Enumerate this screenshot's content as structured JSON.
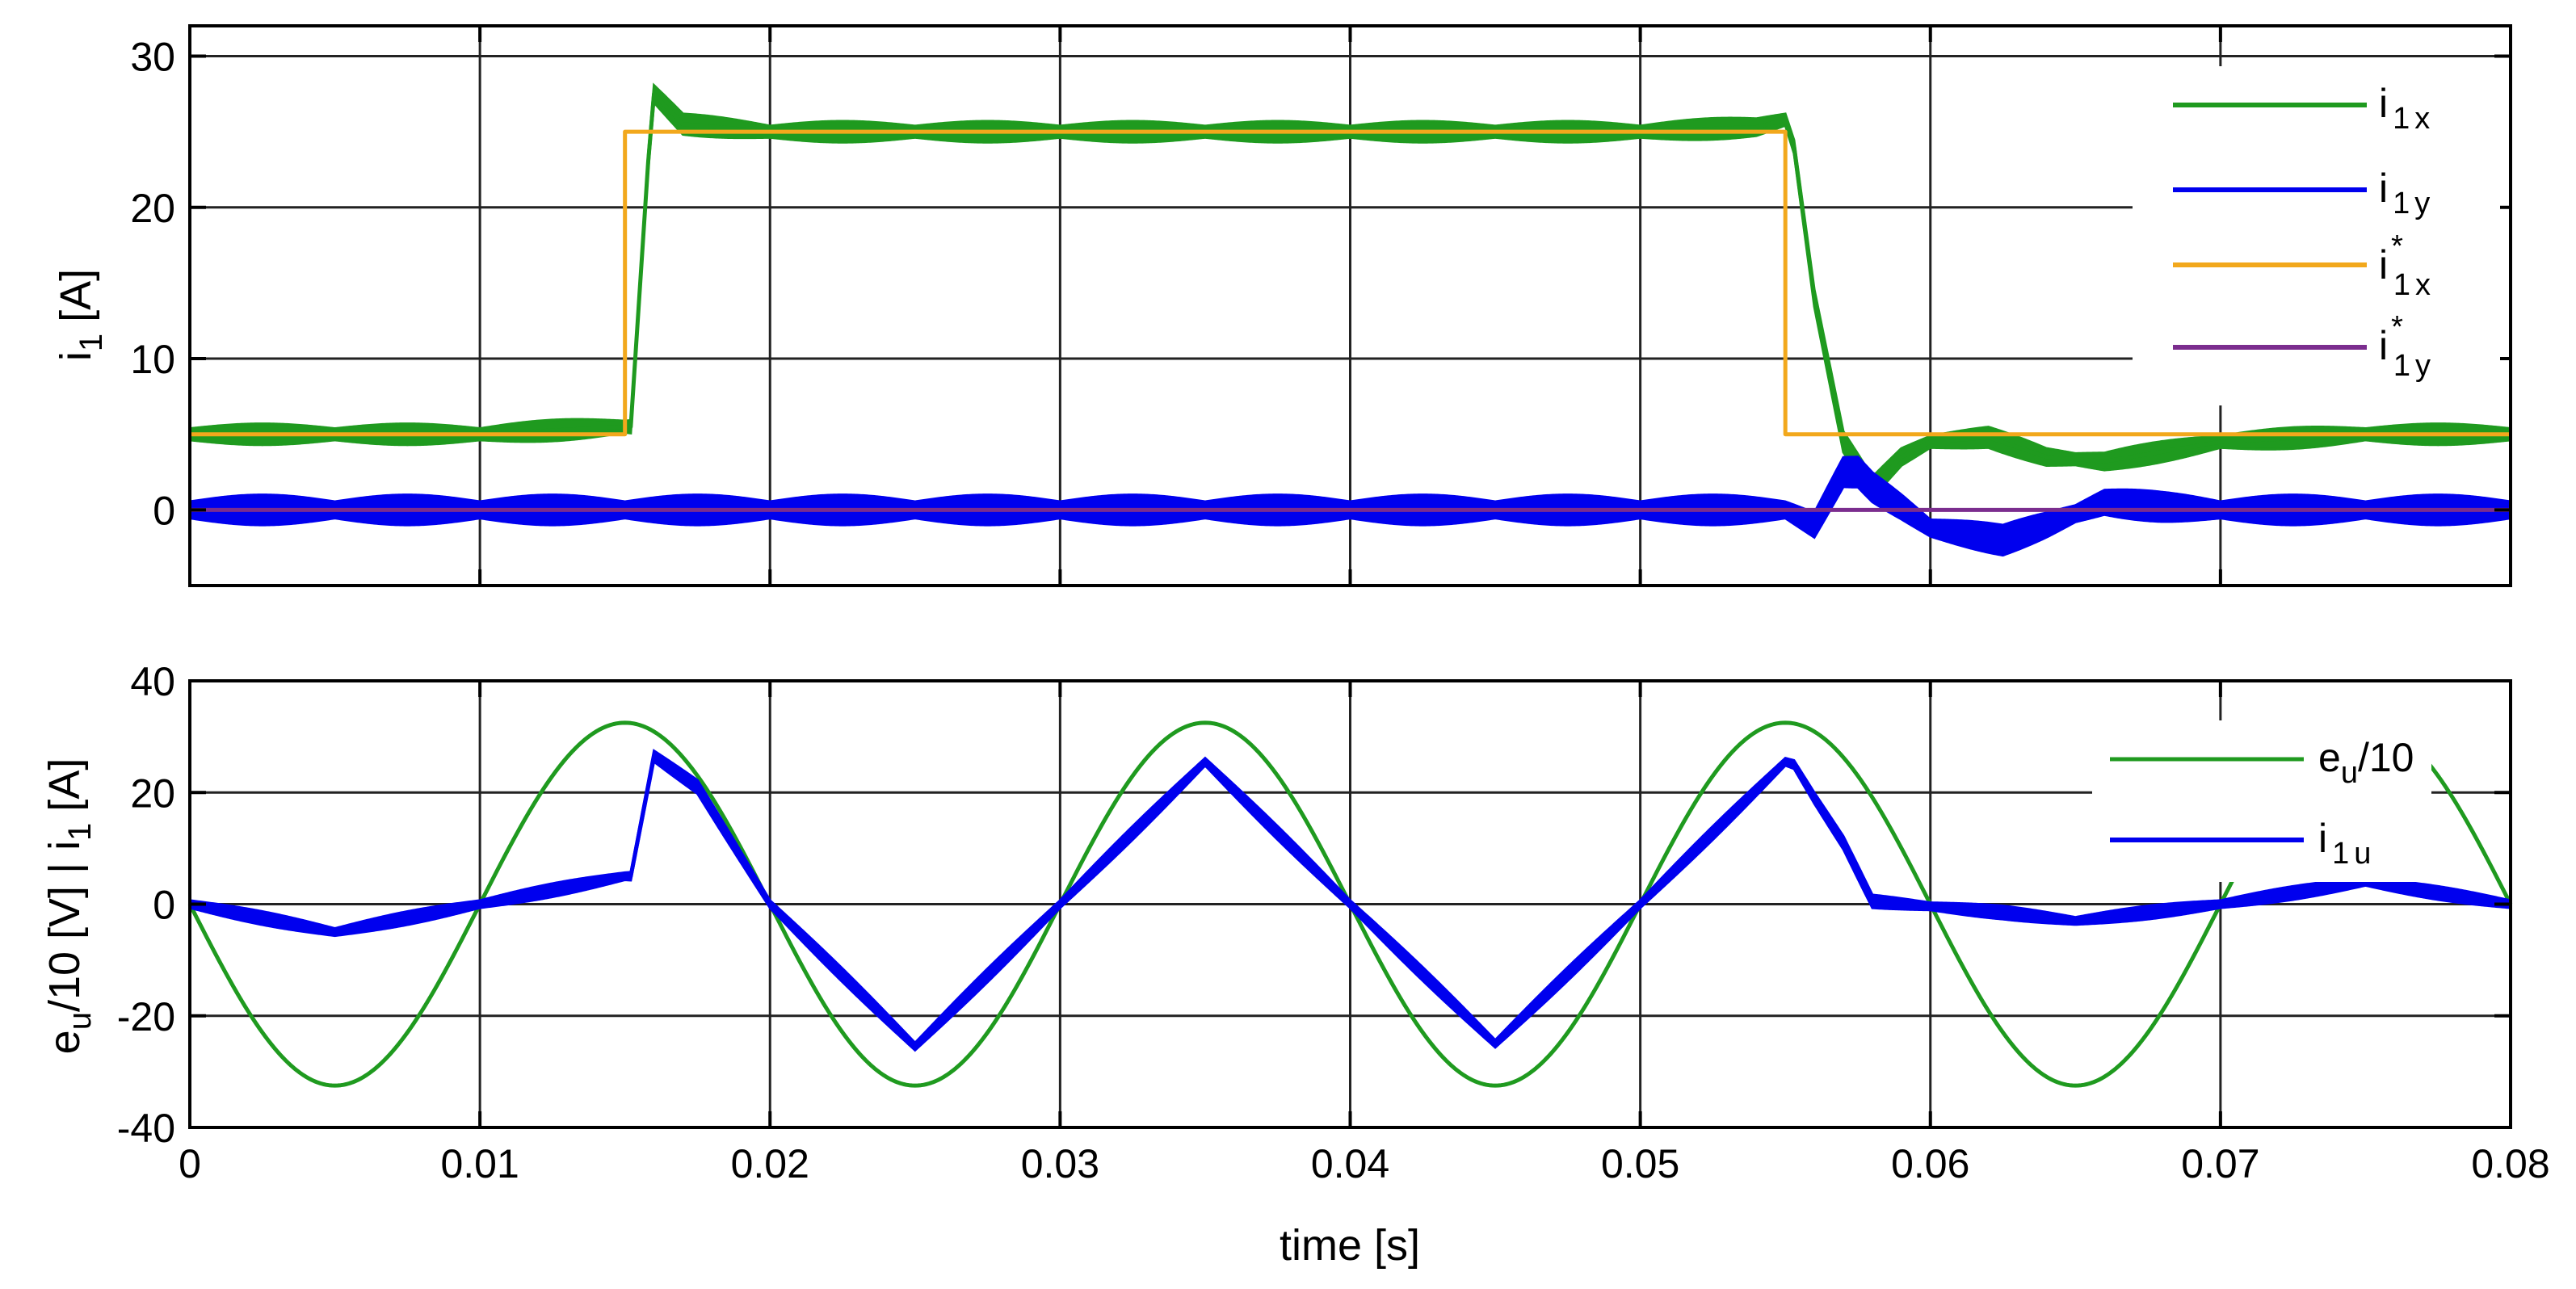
{
  "chart_data": [
    {
      "type": "line",
      "panel": "top",
      "title": "",
      "xlabel": "",
      "ylabel_main": "i",
      "ylabel_sub": "1",
      "ylabel_unit": "[A]",
      "xlim": [
        0,
        0.08
      ],
      "ylim": [
        -5,
        32
      ],
      "yticks": [
        0,
        10,
        20,
        30
      ],
      "ytick_labels": [
        "0",
        "10",
        "20",
        "30"
      ],
      "xticks": [
        0,
        0.01,
        0.02,
        0.03,
        0.04,
        0.05,
        0.06,
        0.07,
        0.08
      ],
      "grid": true,
      "legend_position": "top-right",
      "series": [
        {
          "name": "i1x",
          "label_main": "i",
          "label_sup": "",
          "label_sub": "1x",
          "color": "#1f9a1f",
          "x": [
            0,
            0.005,
            0.01,
            0.015,
            0.0152,
            0.0158,
            0.016,
            0.0165,
            0.017,
            0.02,
            0.025,
            0.03,
            0.035,
            0.04,
            0.045,
            0.05,
            0.054,
            0.055,
            0.0553,
            0.056,
            0.057,
            0.058,
            0.059,
            0.06,
            0.062,
            0.064,
            0.066,
            0.07,
            0.075,
            0.08
          ],
          "y": [
            5,
            5,
            5,
            5.5,
            5.5,
            23,
            27.5,
            26.5,
            25.5,
            25,
            25,
            25,
            25,
            25,
            25,
            25,
            25.3,
            25.8,
            24,
            14,
            4.5,
            1.5,
            3.5,
            4.5,
            4.8,
            3.5,
            3.2,
            4.5,
            5,
            5
          ],
          "envelope_halfwidth": 0.7
        },
        {
          "name": "i1y",
          "label_main": "i",
          "label_sup": "",
          "label_sub": "1y",
          "color": "#0000ee",
          "x": [
            0,
            0.015,
            0.055,
            0.056,
            0.057,
            0.0575,
            0.058,
            0.059,
            0.06,
            0.0625,
            0.064,
            0.066,
            0.068,
            0.07,
            0.075,
            0.08
          ],
          "y": [
            0,
            0,
            0,
            -1,
            2.5,
            2.5,
            1.5,
            0.2,
            -1.2,
            -2,
            -1,
            0.5,
            0.2,
            0,
            0,
            0
          ],
          "envelope_halfwidth": 1.0
        },
        {
          "name": "i1x*",
          "label_main": "i",
          "label_sup": "*",
          "label_sub": "1x",
          "color": "#f2a81c",
          "x": [
            0,
            0.015,
            0.015,
            0.055,
            0.055,
            0.08
          ],
          "y": [
            5,
            5,
            25,
            25,
            5,
            5
          ]
        },
        {
          "name": "i1y*",
          "label_main": "i",
          "label_sup": "*",
          "label_sub": "1y",
          "color": "#7b2d8e",
          "x": [
            0,
            0.08
          ],
          "y": [
            0,
            0
          ]
        }
      ]
    },
    {
      "type": "line",
      "panel": "bottom",
      "title": "",
      "xlabel": "time [s]",
      "ylabel_main": "e",
      "ylabel_sub": "u",
      "ylabel_rest_1": "/10 [V] | i",
      "ylabel_sub_2": "1",
      "ylabel_unit": "[A]",
      "xlim": [
        0,
        0.08
      ],
      "ylim": [
        -40,
        40
      ],
      "yticks": [
        -40,
        -20,
        0,
        20,
        40
      ],
      "ytick_labels": [
        "-40",
        "-20",
        "0",
        "20",
        "40"
      ],
      "xticks": [
        0,
        0.01,
        0.02,
        0.03,
        0.04,
        0.05,
        0.06,
        0.07,
        0.08
      ],
      "xtick_labels": [
        "0",
        "0.01",
        "0.02",
        "0.03",
        "0.04",
        "0.05",
        "0.06",
        "0.07",
        "0.08"
      ],
      "grid": true,
      "legend_position": "top-right",
      "series": [
        {
          "name": "eu/10",
          "label_main": "e",
          "label_sub": "u",
          "label_rest": "/10",
          "color": "#1f9a1f",
          "function": "-32.5*sin(2*pi*50*t)",
          "amplitude": 32.5,
          "frequency_hz": 50
        },
        {
          "name": "i1u",
          "label_main": "i",
          "label_sub": "1u",
          "label_rest": "",
          "color": "#0000ee",
          "x": [
            0,
            0.005,
            0.01,
            0.015,
            0.0152,
            0.016,
            0.0175,
            0.02,
            0.025,
            0.03,
            0.035,
            0.04,
            0.045,
            0.05,
            0.055,
            0.0553,
            0.056,
            0.057,
            0.058,
            0.0625,
            0.065,
            0.07,
            0.075,
            0.08
          ],
          "y": [
            0,
            -5,
            0,
            5,
            5,
            26.5,
            21,
            0,
            -25.5,
            0,
            25.5,
            0,
            -25,
            0,
            25.5,
            25,
            19,
            11,
            0.5,
            -1.5,
            -3,
            0,
            4,
            0
          ],
          "envelope_halfwidth": 1.2
        }
      ]
    }
  ]
}
